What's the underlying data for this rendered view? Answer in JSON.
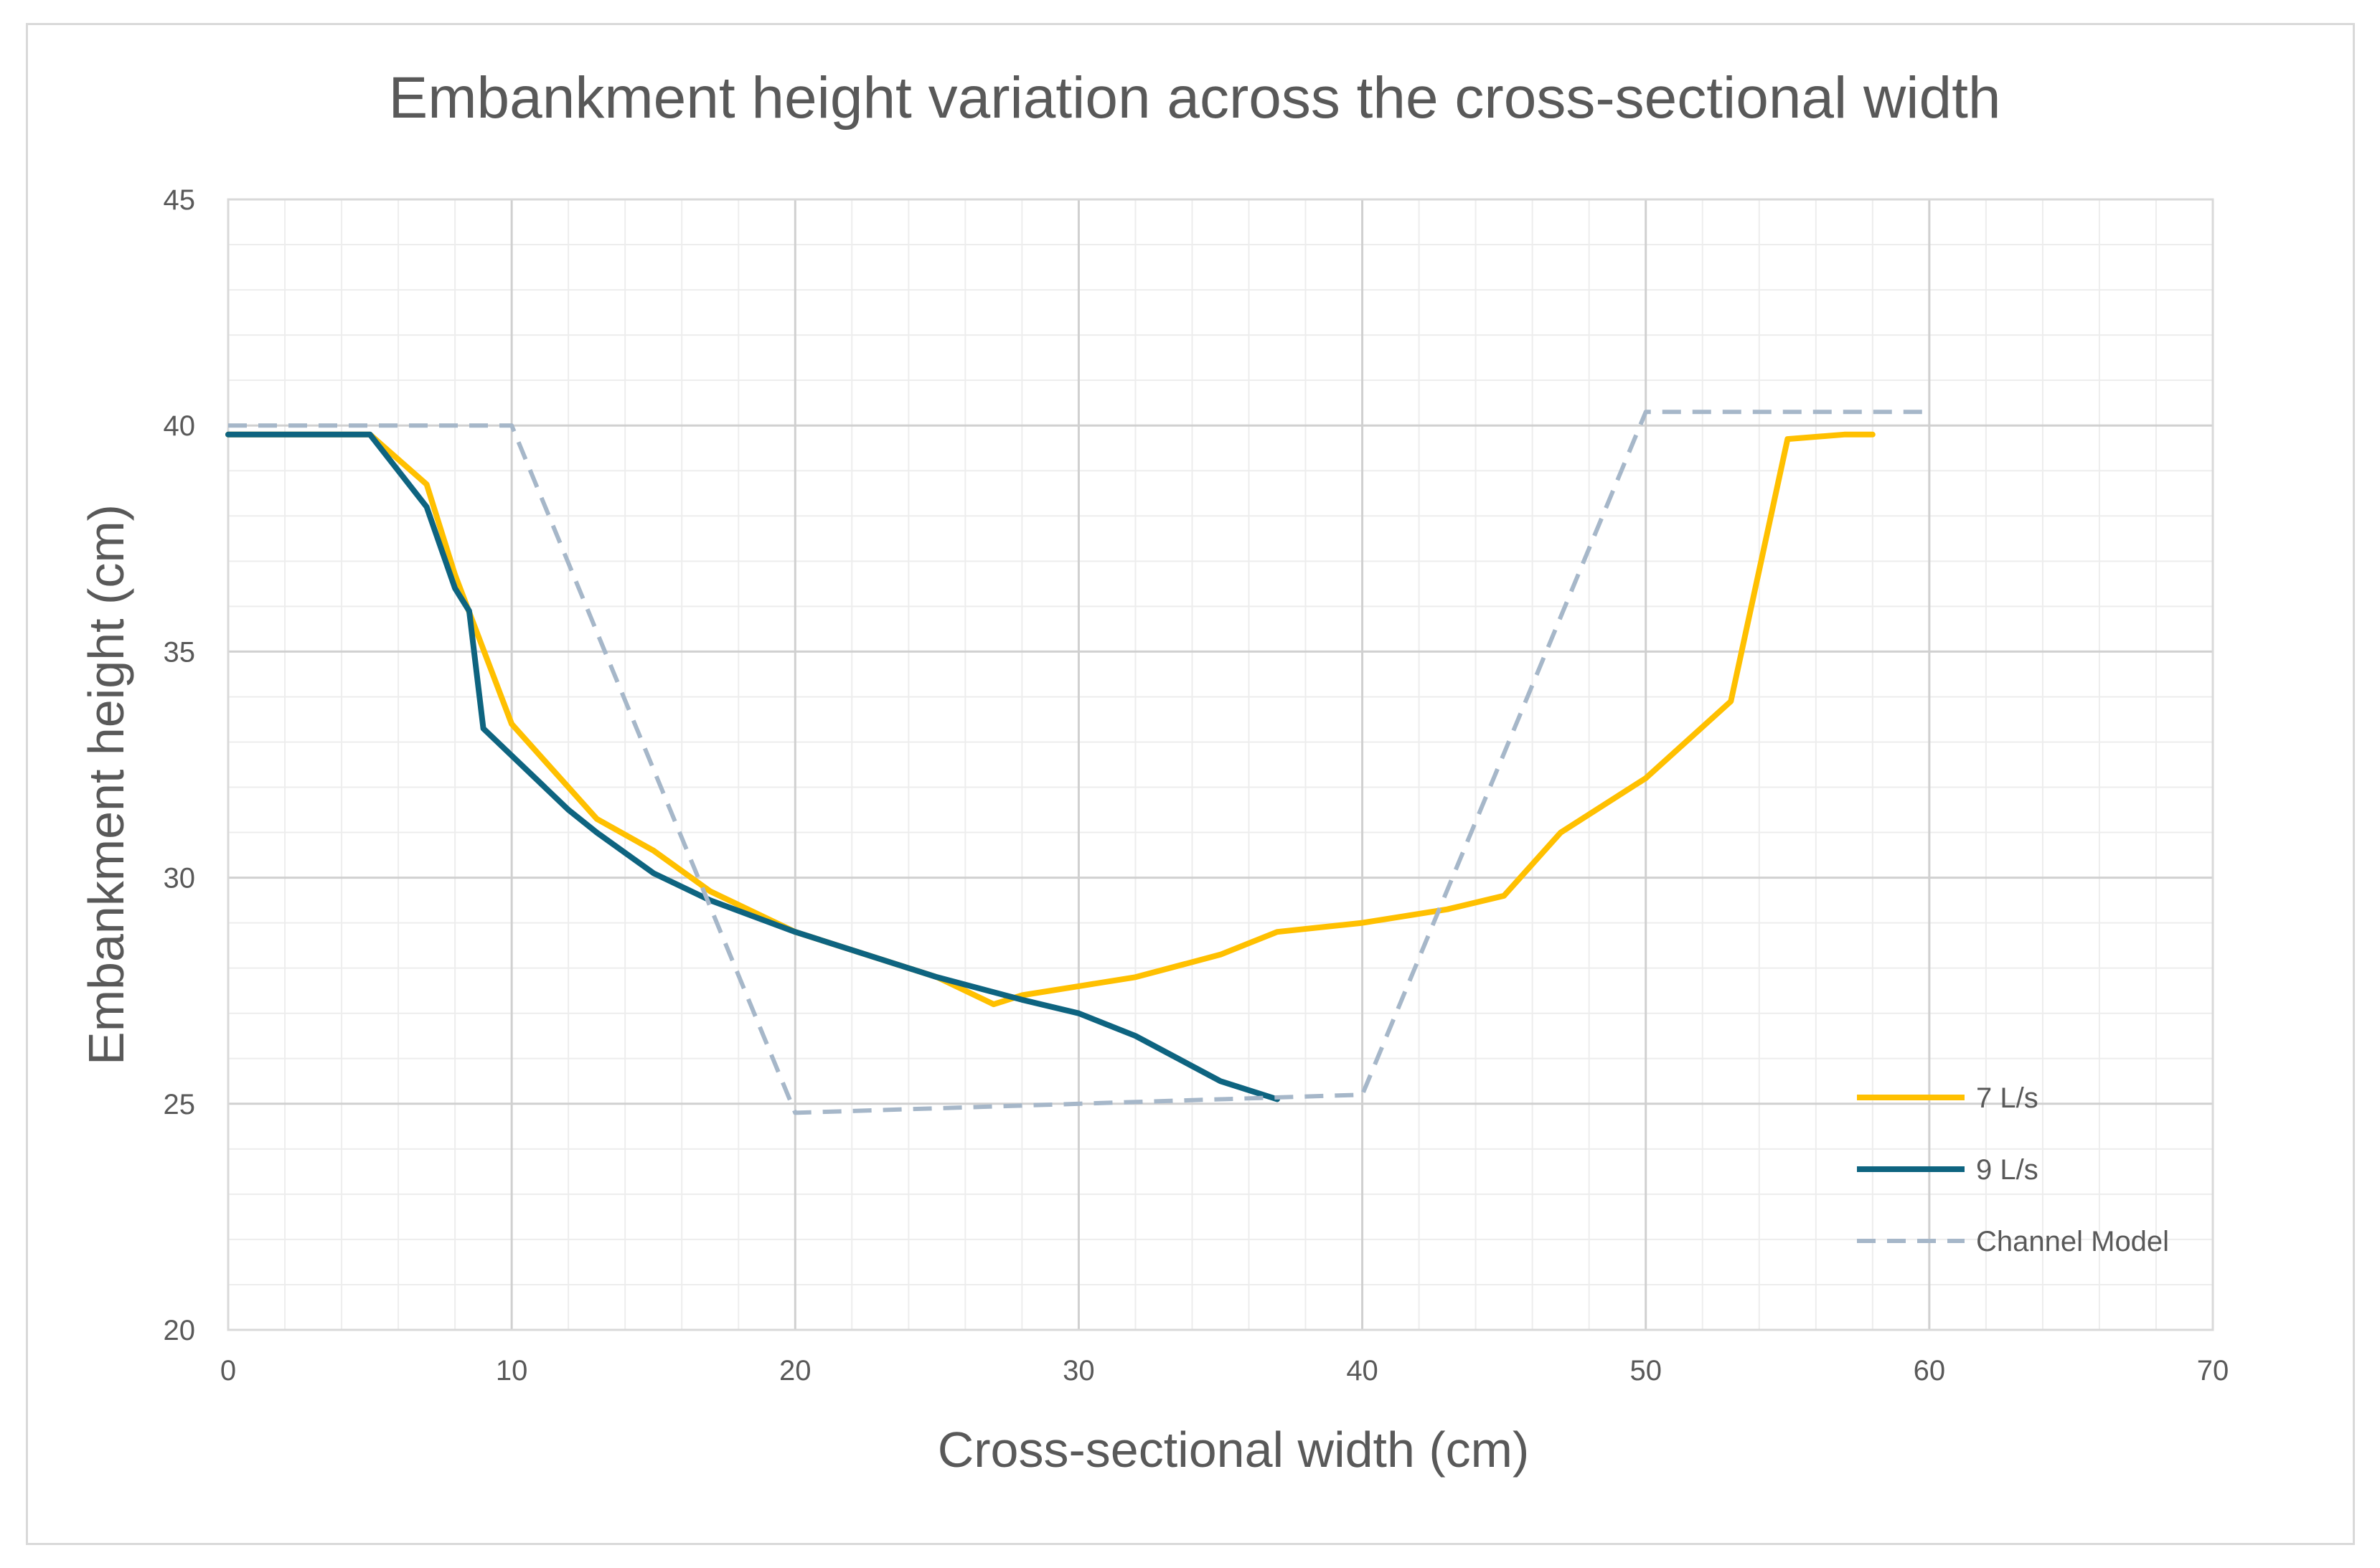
{
  "chart_data": {
    "type": "line",
    "title": "Embankment height variation across the cross-sectional width",
    "xlabel": "Cross-sectional width (cm)",
    "ylabel": "Embankment height (cm)",
    "xlim": [
      0,
      70
    ],
    "ylim": [
      20,
      45
    ],
    "x_ticks": [
      0,
      10,
      20,
      30,
      40,
      50,
      60,
      70
    ],
    "y_ticks": [
      20,
      25,
      30,
      35,
      40,
      45
    ],
    "grid": true,
    "legend_position": "bottom-right",
    "series": [
      {
        "name": "7 L/s",
        "color": "#FFC000",
        "dash": "solid",
        "points": [
          [
            0,
            39.8
          ],
          [
            5,
            39.8
          ],
          [
            7,
            38.7
          ],
          [
            8,
            36.7
          ],
          [
            10,
            33.4
          ],
          [
            13,
            31.3
          ],
          [
            15,
            30.6
          ],
          [
            17,
            29.7
          ],
          [
            20,
            28.8
          ],
          [
            25,
            27.8
          ],
          [
            27,
            27.2
          ],
          [
            28,
            27.4
          ],
          [
            30,
            27.6
          ],
          [
            32,
            27.8
          ],
          [
            35,
            28.3
          ],
          [
            37,
            28.8
          ],
          [
            40,
            29.0
          ],
          [
            43,
            29.3
          ],
          [
            45,
            29.6
          ],
          [
            47,
            31.0
          ],
          [
            50,
            32.2
          ],
          [
            53,
            33.9
          ],
          [
            55,
            39.7
          ],
          [
            57,
            39.8
          ],
          [
            58,
            39.8
          ]
        ]
      },
      {
        "name": "9 L/s",
        "color": "#0E6480",
        "dash": "solid",
        "points": [
          [
            0,
            39.8
          ],
          [
            5,
            39.8
          ],
          [
            7,
            38.2
          ],
          [
            8,
            36.4
          ],
          [
            8.5,
            35.9
          ],
          [
            9,
            33.3
          ],
          [
            10,
            32.7
          ],
          [
            11,
            32.1
          ],
          [
            12,
            31.5
          ],
          [
            13,
            31.0
          ],
          [
            15,
            30.1
          ],
          [
            17,
            29.5
          ],
          [
            20,
            28.8
          ],
          [
            25,
            27.8
          ],
          [
            28,
            27.3
          ],
          [
            30,
            27.0
          ],
          [
            32,
            26.5
          ],
          [
            35,
            25.5
          ],
          [
            37,
            25.1
          ]
        ]
      },
      {
        "name": "Channel Model",
        "color": "#A6B7C9",
        "dash": "dashed",
        "points": [
          [
            0,
            40.0
          ],
          [
            10,
            40.0
          ],
          [
            20,
            24.8
          ],
          [
            40,
            25.2
          ],
          [
            50,
            40.3
          ],
          [
            60,
            40.3
          ]
        ]
      }
    ]
  }
}
